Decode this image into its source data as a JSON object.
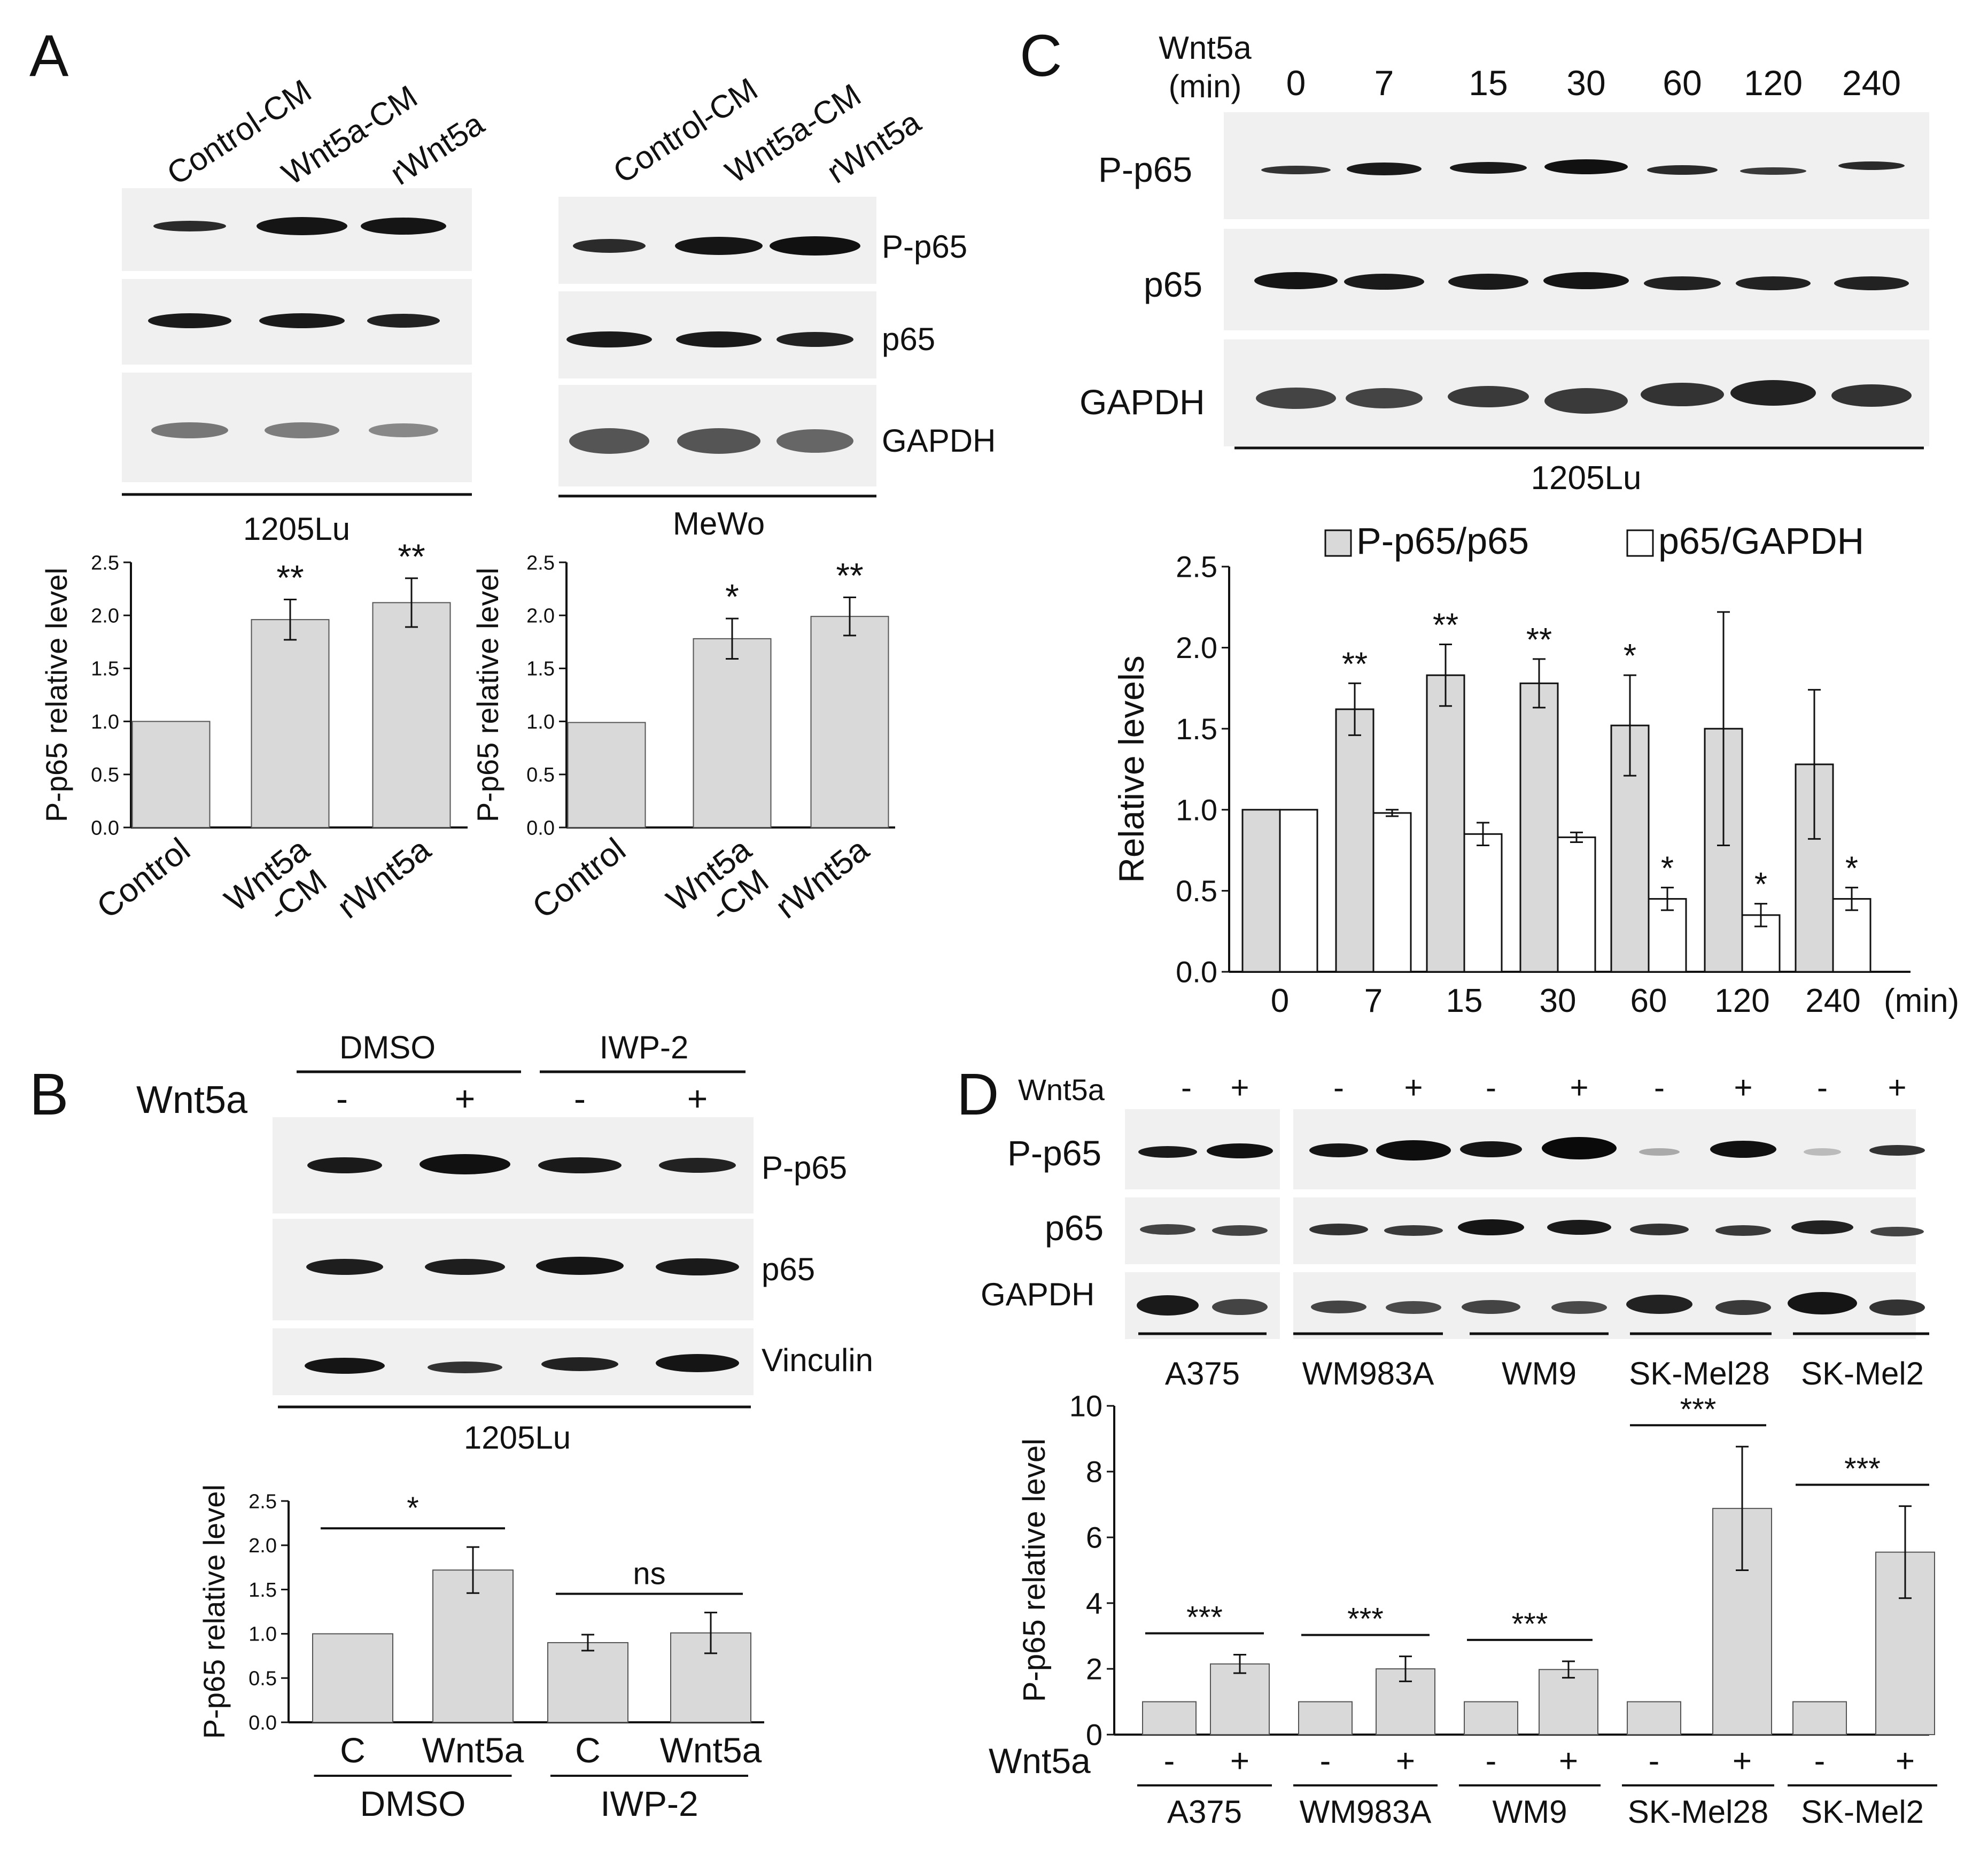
{
  "panel_letters": {
    "a": "A",
    "b": "B",
    "c": "C",
    "d": "D"
  },
  "blot_labels": {
    "p_p65": "P-p65",
    "p65": "p65",
    "gapdh": "GAPDH",
    "vinculin": "Vinculin",
    "wnt5a": "Wnt5a",
    "plus": "+",
    "minus": "-",
    "min_unit": "(min)"
  },
  "panel_a": {
    "left_blot": {
      "lanes": [
        "Control-CM",
        "Wnt5a-CM",
        "rWnt5a"
      ],
      "cell_line": "1205Lu"
    },
    "right_blot": {
      "lanes": [
        "Control-CM",
        "Wnt5a-CM",
        "rWnt5a"
      ],
      "cell_line": "MeWo"
    }
  },
  "panel_b": {
    "groups": [
      "DMSO",
      "IWP-2"
    ],
    "wnt5a_row": [
      "-",
      "+",
      "-",
      "+"
    ],
    "cell_line": "1205Lu"
  },
  "panel_c": {
    "header_line1": "Wnt5a",
    "header_line2": "(min)",
    "times": [
      "0",
      "7",
      "15",
      "30",
      "60",
      "120",
      "240"
    ],
    "cell_line": "1205Lu"
  },
  "panel_d": {
    "cell_lines": [
      "A375",
      "WM983A",
      "WM9",
      "SK-Mel28",
      "SK-Mel2"
    ],
    "wnt5a_row": [
      "-",
      "+",
      "-",
      "+",
      "-",
      "+",
      "-",
      "+",
      "-",
      "+"
    ]
  },
  "chart_data": [
    {
      "id": "A-1205Lu",
      "type": "bar",
      "categories": [
        "Control",
        "Wnt5a\n-CM",
        "rWnt5a"
      ],
      "values": [
        1.0,
        1.96,
        2.12
      ],
      "errors": [
        0,
        0.19,
        0.23
      ],
      "significance": [
        "",
        "**",
        "**"
      ],
      "ylabel": "P-p65 relative level",
      "ylim": [
        0,
        2.5
      ],
      "yticks": [
        0.0,
        0.5,
        1.0,
        1.5,
        2.0,
        2.5
      ],
      "bar_color": "#d9d9d9"
    },
    {
      "id": "A-MeWo",
      "type": "bar",
      "categories": [
        "Control",
        "Wnt5a\n-CM",
        "rWnt5a"
      ],
      "values": [
        0.99,
        1.78,
        1.99
      ],
      "errors": [
        0,
        0.19,
        0.18
      ],
      "significance": [
        "",
        "*",
        "**"
      ],
      "ylabel": "P-p65 relative level",
      "ylim": [
        0,
        2.5
      ],
      "yticks": [
        0.0,
        0.5,
        1.0,
        1.5,
        2.0,
        2.5
      ],
      "bar_color": "#d9d9d9"
    },
    {
      "id": "B",
      "type": "bar",
      "categories": [
        "C",
        "Wnt5a",
        "C",
        "Wnt5a"
      ],
      "groups": [
        "DMSO",
        "IWP-2"
      ],
      "values": [
        1.0,
        1.72,
        0.9,
        1.01
      ],
      "errors": [
        0,
        0.26,
        0.09,
        0.23
      ],
      "comparisons": [
        {
          "from": 0,
          "to": 1,
          "label": "*"
        },
        {
          "from": 2,
          "to": 3,
          "label": "ns"
        }
      ],
      "ylabel": "P-p65 relative level",
      "ylim": [
        0,
        2.5
      ],
      "yticks": [
        0.0,
        0.5,
        1.0,
        1.5,
        2.0,
        2.5
      ],
      "bar_color": "#d9d9d9"
    },
    {
      "id": "C",
      "type": "bar",
      "categories": [
        "0",
        "7",
        "15",
        "30",
        "60",
        "120",
        "240"
      ],
      "x_unit": "(min)",
      "series": [
        {
          "name": "P-p65/p65",
          "color": "#d9d9d9",
          "values": [
            1.0,
            1.62,
            1.83,
            1.78,
            1.52,
            1.5,
            1.28
          ],
          "errors": [
            0,
            0.16,
            0.19,
            0.15,
            0.31,
            0.72,
            0.46
          ],
          "significance": [
            "",
            "**",
            "**",
            "**",
            "*",
            "",
            ""
          ]
        },
        {
          "name": "p65/GAPDH",
          "color": "#ffffff",
          "values": [
            1.0,
            0.98,
            0.85,
            0.83,
            0.45,
            0.35,
            0.45
          ],
          "errors": [
            0,
            0.02,
            0.07,
            0.03,
            0.07,
            0.07,
            0.07
          ],
          "significance": [
            "",
            "",
            "",
            "",
            "*",
            "*",
            "*"
          ]
        }
      ],
      "ylabel": "Relative levels",
      "ylim": [
        0,
        2.5
      ],
      "yticks": [
        0.0,
        0.5,
        1.0,
        1.5,
        2.0,
        2.5
      ],
      "legend": "top"
    },
    {
      "id": "D",
      "type": "bar",
      "groups": [
        "A375",
        "WM983A",
        "WM9",
        "SK-Mel28",
        "SK-Mel2"
      ],
      "categories": [
        "-",
        "+",
        "-",
        "+",
        "-",
        "+",
        "-",
        "+",
        "-",
        "+"
      ],
      "category_title": "Wnt5a",
      "values": [
        1.0,
        2.15,
        1.0,
        2.0,
        1.0,
        1.98,
        1.0,
        6.88,
        1.0,
        5.55
      ],
      "errors": [
        0,
        0.28,
        0,
        0.38,
        0,
        0.25,
        0,
        1.88,
        0,
        1.4
      ],
      "comparisons": [
        {
          "from": 0,
          "to": 1,
          "label": "***"
        },
        {
          "from": 2,
          "to": 3,
          "label": "***"
        },
        {
          "from": 4,
          "to": 5,
          "label": "***"
        },
        {
          "from": 6,
          "to": 7,
          "label": "***"
        },
        {
          "from": 8,
          "to": 9,
          "label": "***"
        }
      ],
      "ylabel": "P-p65 relative level",
      "ylim": [
        0,
        10
      ],
      "yticks": [
        0,
        2,
        4,
        6,
        8,
        10
      ],
      "bar_color": "#d9d9d9"
    }
  ]
}
